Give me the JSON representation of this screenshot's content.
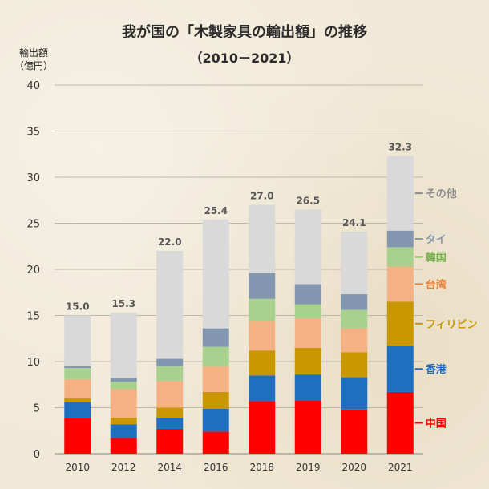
{
  "chart_data": {
    "type": "bar",
    "stacked": true,
    "title": "我が国の「木製家具の輸出額」の推移",
    "subtitle": "（2010－2021）",
    "ylabel": "輸出額\n（億円）",
    "ylabel_lines": [
      "輸出額",
      "（億円）"
    ],
    "ylim": [
      0,
      40
    ],
    "yticks": [
      0,
      5,
      10,
      15,
      20,
      25,
      30,
      35,
      40
    ],
    "grid": true,
    "legend_placement": "right",
    "categories": [
      "2010",
      "2012",
      "2014",
      "2016",
      "2018",
      "2019",
      "2020",
      "2021"
    ],
    "totals": [
      15.0,
      15.3,
      22.0,
      25.4,
      27.0,
      26.5,
      24.1,
      32.3
    ],
    "total_labels": [
      "15.0",
      "15.3",
      "22.0",
      "25.4",
      "27.0",
      "26.5",
      "24.1",
      "32.3"
    ],
    "series": [
      {
        "name": "中国",
        "color": "#ff0000",
        "values": [
          3.9,
          1.7,
          2.7,
          2.4,
          5.7,
          5.8,
          4.8,
          6.7
        ]
      },
      {
        "name": "香港",
        "color": "#1f6fc1",
        "values": [
          1.7,
          1.5,
          1.2,
          2.5,
          2.8,
          2.8,
          3.5,
          5.0
        ]
      },
      {
        "name": "フィリピン",
        "color": "#c99700",
        "values": [
          0.4,
          0.7,
          1.1,
          1.8,
          2.7,
          2.9,
          2.7,
          4.8
        ]
      },
      {
        "name": "台湾",
        "color": "#f4b183",
        "values": [
          2.1,
          3.1,
          2.9,
          2.8,
          3.2,
          3.2,
          2.6,
          3.8
        ]
      },
      {
        "name": "韓国",
        "color": "#a9d18e",
        "values": [
          1.2,
          0.8,
          1.6,
          2.1,
          2.4,
          1.5,
          2.0,
          2.1
        ]
      },
      {
        "name": "タイ",
        "color": "#8497b0",
        "values": [
          0.2,
          0.4,
          0.8,
          2.0,
          2.8,
          2.2,
          1.7,
          1.8
        ]
      },
      {
        "name": "その他",
        "color": "#d9d9d9",
        "values": [
          5.5,
          7.1,
          11.7,
          11.8,
          7.4,
          8.1,
          6.8,
          8.1
        ]
      }
    ],
    "legend_colors": [
      "#ff0000",
      "#1f6fc1",
      "#c99700",
      "#ed7d31",
      "#70ad47",
      "#8497b0",
      "#8c8c8c"
    ]
  }
}
